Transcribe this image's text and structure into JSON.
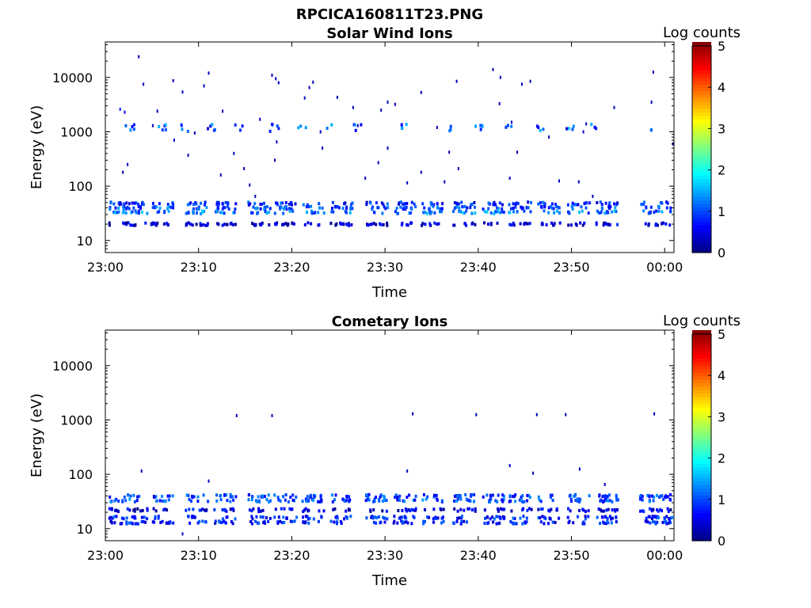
{
  "figure_title": "RPCICA160811T23.PNG",
  "chart_data": [
    {
      "type": "heatmap",
      "title": "Solar Wind Ions",
      "xlabel": "Time",
      "ylabel": "Energy (eV)",
      "xticks": [
        "23:00",
        "23:10",
        "23:20",
        "23:30",
        "23:40",
        "23:50",
        "00:00"
      ],
      "yticks": [
        "10",
        "100",
        "1000",
        "10000"
      ],
      "yscale": "log",
      "ylim": [
        6,
        45000
      ],
      "xlim_minutes": [
        0,
        61
      ],
      "colorbar": {
        "label": "Log counts",
        "ticks": [
          "0",
          "1",
          "2",
          "3",
          "4",
          "5"
        ],
        "range": [
          0,
          5
        ],
        "colormap": "jet"
      },
      "bursts_minutes": [
        0.3,
        2.0,
        4.8,
        8.5,
        11.5,
        15.2,
        18.0,
        21.0,
        24.0,
        27.8,
        30.8,
        33.8,
        37.2,
        40.3,
        43.2,
        46.3,
        49.5,
        52.5,
        57.2,
        59.5
      ],
      "bands": [
        {
          "energy_ev": 48,
          "log_counts": 0.8
        },
        {
          "energy_ev": 40,
          "log_counts": 1.0
        },
        {
          "energy_ev": 33,
          "log_counts": 1.2
        },
        {
          "energy_ev": 20,
          "log_counts": 0.4
        }
      ],
      "sparse_events": [
        {
          "t": 3.5,
          "e": 24000,
          "c": 0.3
        },
        {
          "t": 4,
          "e": 7500,
          "c": 0.3
        },
        {
          "t": 7.2,
          "e": 8700,
          "c": 0.3
        },
        {
          "t": 8.2,
          "e": 5400,
          "c": 0.3
        },
        {
          "t": 10.5,
          "e": 7000,
          "c": 0.3
        },
        {
          "t": 11,
          "e": 12000,
          "c": 0.3
        },
        {
          "t": 17.8,
          "e": 11000,
          "c": 0.3
        },
        {
          "t": 18.2,
          "e": 9500,
          "c": 0.3
        },
        {
          "t": 18.5,
          "e": 8000,
          "c": 0.3
        },
        {
          "t": 21.8,
          "e": 6500,
          "c": 0.3
        },
        {
          "t": 22.2,
          "e": 8200,
          "c": 0.3
        },
        {
          "t": 24.8,
          "e": 4300,
          "c": 0.3
        },
        {
          "t": 37.6,
          "e": 8500,
          "c": 0.3
        },
        {
          "t": 41.5,
          "e": 14000,
          "c": 0.3
        },
        {
          "t": 42.3,
          "e": 10000,
          "c": 0.3
        },
        {
          "t": 44.6,
          "e": 7500,
          "c": 0.3
        },
        {
          "t": 45.5,
          "e": 8500,
          "c": 0.3
        },
        {
          "t": 58.7,
          "e": 12500,
          "c": 0.3
        },
        {
          "t": 1.5,
          "e": 2600,
          "c": 0.8
        },
        {
          "t": 2,
          "e": 2300,
          "c": 0.5
        },
        {
          "t": 5.5,
          "e": 2400,
          "c": 0.3
        },
        {
          "t": 7.3,
          "e": 700,
          "c": 0.3
        },
        {
          "t": 8.8,
          "e": 370,
          "c": 0.3
        },
        {
          "t": 9.5,
          "e": 950,
          "c": 0.3
        },
        {
          "t": 12.5,
          "e": 2400,
          "c": 0.3
        },
        {
          "t": 13.7,
          "e": 400,
          "c": 0.3
        },
        {
          "t": 14.8,
          "e": 210,
          "c": 0.3
        },
        {
          "t": 18.3,
          "e": 650,
          "c": 0.3
        },
        {
          "t": 21.3,
          "e": 4200,
          "c": 0.3
        },
        {
          "t": 23.2,
          "e": 500,
          "c": 0.3
        },
        {
          "t": 26.5,
          "e": 2800,
          "c": 0.3
        },
        {
          "t": 29.5,
          "e": 2500,
          "c": 0.3
        },
        {
          "t": 30.2,
          "e": 3500,
          "c": 0.3
        },
        {
          "t": 31,
          "e": 3200,
          "c": 0.3
        },
        {
          "t": 33.8,
          "e": 5300,
          "c": 0.3
        },
        {
          "t": 36.8,
          "e": 420,
          "c": 0.3
        },
        {
          "t": 37.8,
          "e": 210,
          "c": 0.3
        },
        {
          "t": 42.2,
          "e": 3300,
          "c": 0.3
        },
        {
          "t": 43.5,
          "e": 1500,
          "c": 0.3
        },
        {
          "t": 44.1,
          "e": 420,
          "c": 0.3
        },
        {
          "t": 51.2,
          "e": 1000,
          "c": 0.3
        },
        {
          "t": 54.5,
          "e": 2800,
          "c": 0.3
        },
        {
          "t": 58.5,
          "e": 3500,
          "c": 0.3
        },
        {
          "t": 60.8,
          "e": 600,
          "c": 0.3
        },
        {
          "t": 1.8,
          "e": 180,
          "c": 0.3
        },
        {
          "t": 2.3,
          "e": 250,
          "c": 0.3
        },
        {
          "t": 12.3,
          "e": 160,
          "c": 0.3
        },
        {
          "t": 15.4,
          "e": 105,
          "c": 0.3
        },
        {
          "t": 16,
          "e": 65,
          "c": 0.3
        },
        {
          "t": 18.1,
          "e": 300,
          "c": 0.3
        },
        {
          "t": 27.8,
          "e": 140,
          "c": 0.3
        },
        {
          "t": 29.2,
          "e": 270,
          "c": 0.3
        },
        {
          "t": 30.2,
          "e": 500,
          "c": 0.3
        },
        {
          "t": 32.3,
          "e": 115,
          "c": 0.3
        },
        {
          "t": 33.8,
          "e": 180,
          "c": 0.3
        },
        {
          "t": 36.3,
          "e": 120,
          "c": 0.3
        },
        {
          "t": 43.3,
          "e": 140,
          "c": 0.3
        },
        {
          "t": 48.6,
          "e": 125,
          "c": 0.3
        },
        {
          "t": 50.7,
          "e": 120,
          "c": 0.3
        },
        {
          "t": 52.2,
          "e": 65,
          "c": 0.3
        },
        {
          "t": 5,
          "e": 1300,
          "c": 0.3
        },
        {
          "t": 16.5,
          "e": 1700,
          "c": 0.3
        },
        {
          "t": 23,
          "e": 1000,
          "c": 0.3
        },
        {
          "t": 27,
          "e": 1300,
          "c": 0.3
        },
        {
          "t": 35.5,
          "e": 1200,
          "c": 0.3
        },
        {
          "t": 47.5,
          "e": 800,
          "c": 0.3
        },
        {
          "t": 51.5,
          "e": 1400,
          "c": 0.3
        }
      ],
      "cluster_1000ev_minutes": [
        2.0,
        5.5,
        8,
        10.8,
        13.8,
        17.5,
        20.5,
        23.5,
        26.5,
        31.5,
        36.8,
        39.5,
        42.5,
        46.2,
        49.2,
        52,
        58
      ]
    },
    {
      "type": "heatmap",
      "title": "Cometary Ions",
      "xlabel": "Time",
      "ylabel": "Energy (eV)",
      "xticks": [
        "23:00",
        "23:10",
        "23:20",
        "23:30",
        "23:40",
        "23:50",
        "00:00"
      ],
      "yticks": [
        "10",
        "100",
        "1000",
        "10000"
      ],
      "yscale": "log",
      "ylim": [
        6,
        45000
      ],
      "xlim_minutes": [
        0,
        61
      ],
      "colorbar": {
        "label": "Log counts",
        "ticks": [
          "0",
          "1",
          "2",
          "3",
          "4",
          "5"
        ],
        "range": [
          0,
          5
        ],
        "colormap": "jet"
      },
      "bursts_minutes": [
        0.3,
        2.0,
        4.8,
        8.5,
        11.5,
        15.2,
        18.0,
        21.0,
        24.0,
        27.8,
        30.8,
        33.8,
        37.2,
        40.3,
        43.2,
        46.3,
        49.5,
        52.5,
        57.2,
        59.5
      ],
      "bands": [
        {
          "energy_ev": 40,
          "log_counts": 0.9
        },
        {
          "energy_ev": 33,
          "log_counts": 1.0
        },
        {
          "energy_ev": 22,
          "log_counts": 0.5
        },
        {
          "energy_ev": 16,
          "log_counts": 0.8
        },
        {
          "energy_ev": 13,
          "log_counts": 0.7
        }
      ],
      "sparse_events": [
        {
          "t": 3.8,
          "e": 115,
          "c": 0.3
        },
        {
          "t": 11,
          "e": 75,
          "c": 0.3
        },
        {
          "t": 32.3,
          "e": 115,
          "c": 0.3
        },
        {
          "t": 43.3,
          "e": 145,
          "c": 0.3
        },
        {
          "t": 45.8,
          "e": 105,
          "c": 0.3
        },
        {
          "t": 50.8,
          "e": 125,
          "c": 0.3
        },
        {
          "t": 53.5,
          "e": 65,
          "c": 0.3
        },
        {
          "t": 14,
          "e": 1200,
          "c": 0.3
        },
        {
          "t": 17.8,
          "e": 1200,
          "c": 0.3
        },
        {
          "t": 32.9,
          "e": 1300,
          "c": 0.3
        },
        {
          "t": 39.7,
          "e": 1250,
          "c": 0.3
        },
        {
          "t": 46.2,
          "e": 1250,
          "c": 0.3
        },
        {
          "t": 49.3,
          "e": 1250,
          "c": 0.3
        },
        {
          "t": 58.8,
          "e": 1300,
          "c": 0.3
        },
        {
          "t": 8.2,
          "e": 8,
          "c": 0.3
        }
      ],
      "cluster_1000ev_minutes": []
    }
  ]
}
